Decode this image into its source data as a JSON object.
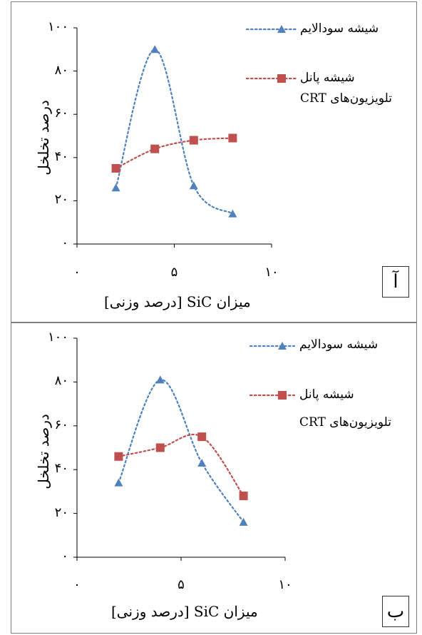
{
  "colors": {
    "blue": "#4f81bd",
    "red": "#c0504d",
    "axis": "#000000",
    "border": "#7f7f7f"
  },
  "chart_data": [
    {
      "type": "line",
      "panel_label": "آ",
      "xlabel": "میزان SiC [درصد وزنی]",
      "ylabel": "درصد تخلخل",
      "x_tick_labels": [
        "۰",
        "۵",
        "۱۰"
      ],
      "y_tick_labels": [
        "۰",
        "۲۰",
        "۴۰",
        "۶۰",
        "۸۰",
        "۱۰۰"
      ],
      "xlim": [
        0,
        10
      ],
      "ylim": [
        0,
        100
      ],
      "legend": [
        "شیشه سودالایم",
        "شیشه پانل",
        "تلویزیون‌های CRT"
      ],
      "legend_pos": "top-right",
      "series": [
        {
          "name": "شیشه سودالایم",
          "color": "#4f81bd",
          "marker": "triangle",
          "x": [
            2,
            4,
            6,
            8
          ],
          "y": [
            26,
            90,
            27,
            14
          ]
        },
        {
          "name": "شیشه پانل تلویزیون‌های CRT",
          "color": "#c0504d",
          "marker": "square",
          "x": [
            2,
            4,
            6,
            8
          ],
          "y": [
            35,
            44,
            48,
            49
          ]
        }
      ]
    },
    {
      "type": "line",
      "panel_label": "ب",
      "xlabel": "میزان SiC [درصد وزنی]",
      "ylabel": "درصد تخلخل",
      "x_tick_labels": [
        "۰",
        "۵",
        "۱۰"
      ],
      "y_tick_labels": [
        "۰",
        "۲۰",
        "۴۰",
        "۶۰",
        "۸۰",
        "۱۰۰"
      ],
      "xlim": [
        0,
        10
      ],
      "ylim": [
        0,
        100
      ],
      "legend": [
        "شیشه سودالایم",
        "شیشه پانل",
        "تلویزیون‌های CRT"
      ],
      "legend_pos": "top-right",
      "series": [
        {
          "name": "شیشه سودالایم",
          "color": "#4f81bd",
          "marker": "triangle",
          "x": [
            2,
            4,
            6,
            8
          ],
          "y": [
            34,
            81,
            43,
            16
          ]
        },
        {
          "name": "شیشه پانل تلویزیون‌های CRT",
          "color": "#c0504d",
          "marker": "square",
          "x": [
            2,
            4,
            6,
            8
          ],
          "y": [
            46,
            50,
            55,
            28
          ]
        }
      ]
    }
  ]
}
